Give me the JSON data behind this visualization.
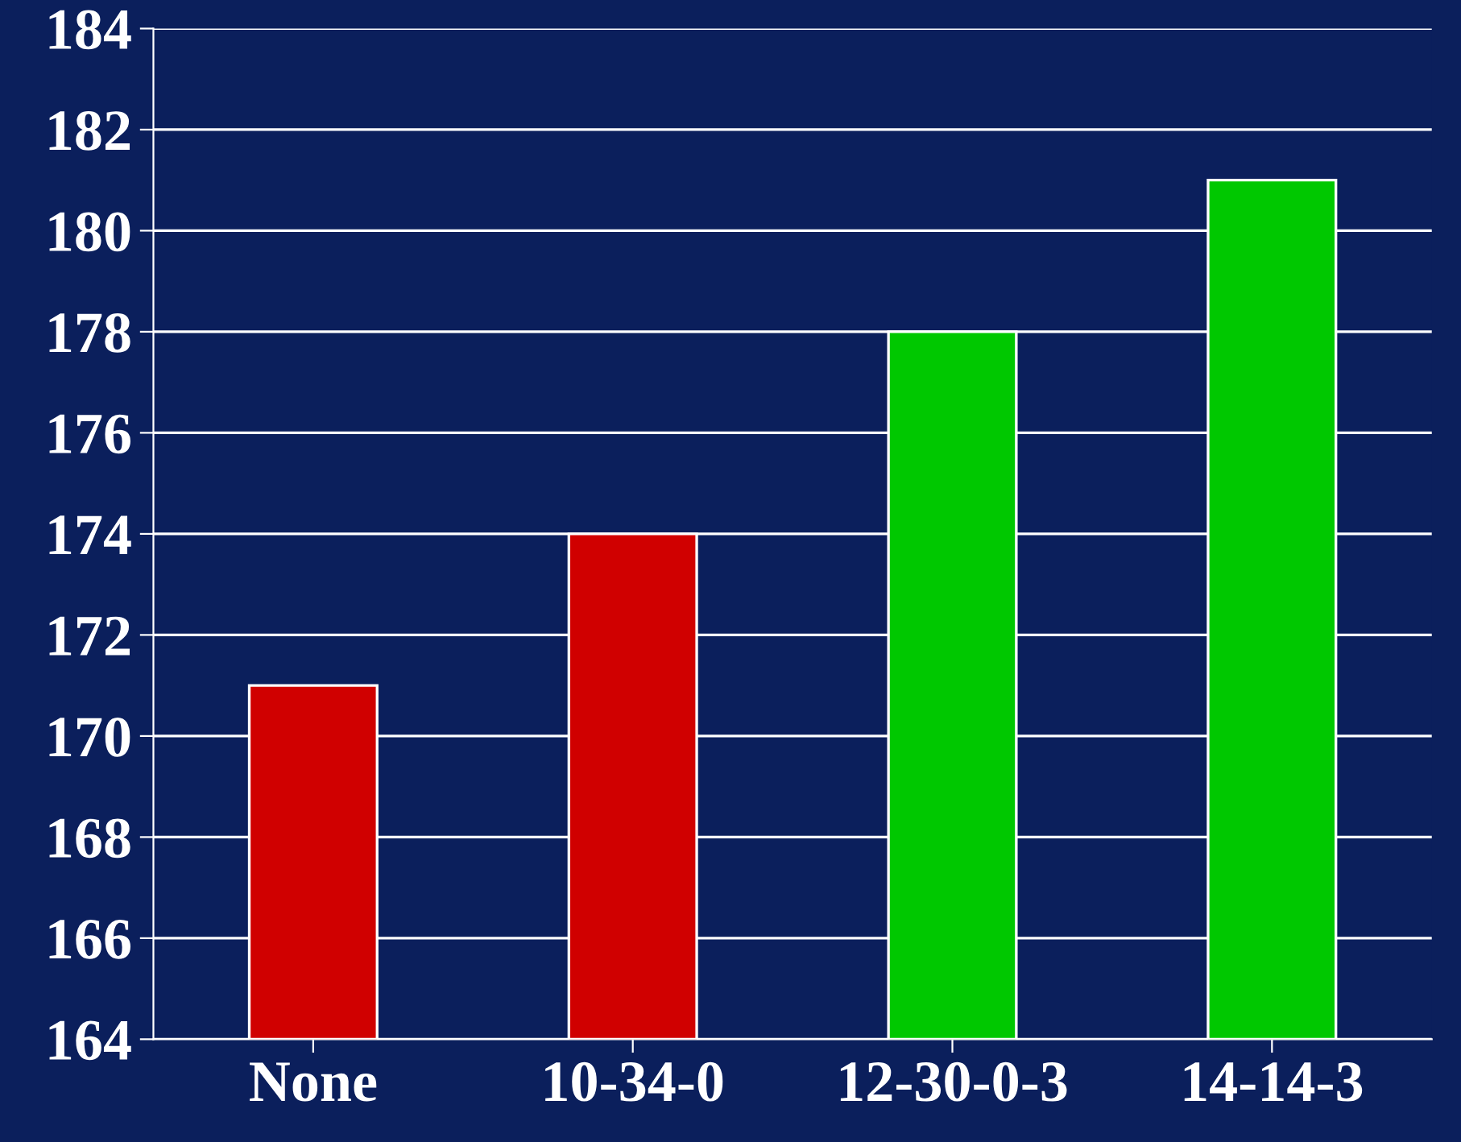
{
  "chart_data": {
    "type": "bar",
    "categories": [
      "None",
      "10-34-0",
      "12-30-0-3",
      "14-14-3"
    ],
    "values": [
      171,
      174,
      178,
      181
    ],
    "colors": [
      "#d00000",
      "#d00000",
      "#00c800",
      "#00c800"
    ],
    "ylim": [
      164,
      184
    ],
    "yticks": [
      164,
      166,
      168,
      170,
      172,
      174,
      176,
      178,
      180,
      182,
      184
    ],
    "grid": "y"
  }
}
